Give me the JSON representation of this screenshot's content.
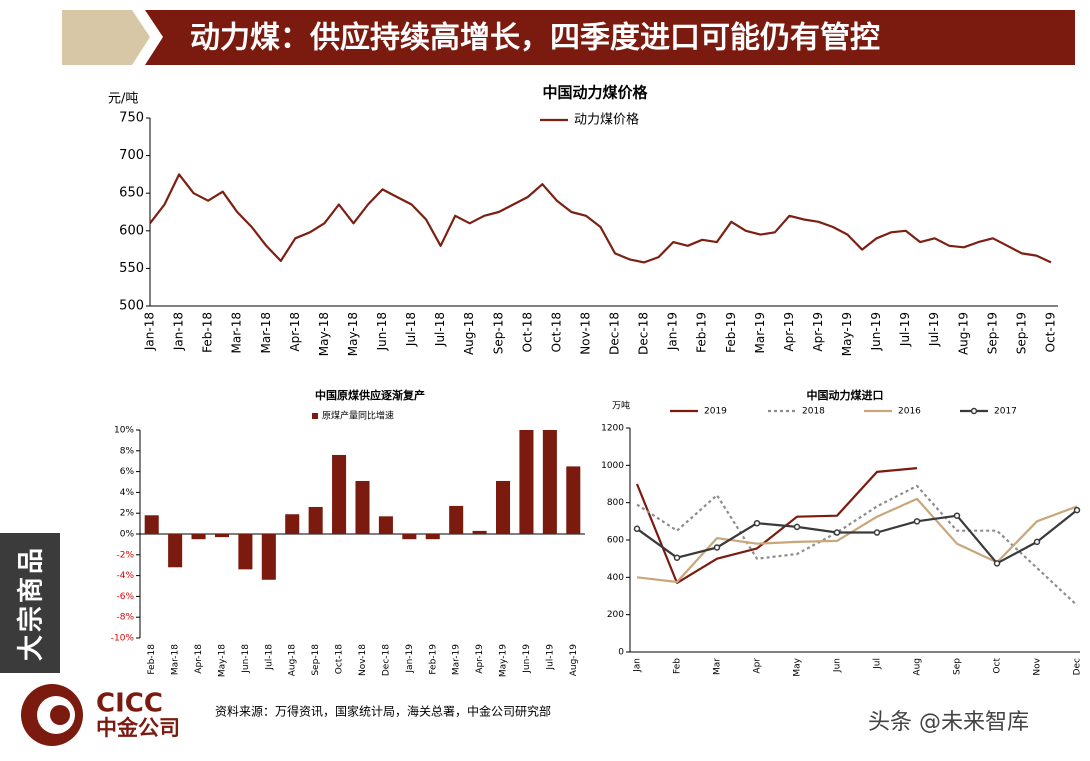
{
  "header": {
    "title": "动力煤：供应持续高增长，四季度进口可能仍有管控"
  },
  "side_label": "大宗商品",
  "logo": {
    "en": "CICC",
    "cn": "中金公司"
  },
  "source": "资料来源：万得资讯，国家统计局，海关总署，中金公司研究部",
  "watermark": "头条 @未来智库",
  "chart_data": [
    {
      "type": "line",
      "title": "中国动力煤价格",
      "y_label": "元/吨",
      "categories": [
        "Jan-18",
        null,
        "Jan-18",
        null,
        "Feb-18",
        null,
        "Mar-18",
        null,
        "Mar-18",
        null,
        "Apr-18",
        null,
        "May-18",
        null,
        "May-18",
        null,
        "Jun-18",
        null,
        "Jul-18",
        null,
        "Jul-18",
        null,
        "Aug-18",
        null,
        "Sep-18",
        null,
        "Oct-18",
        null,
        "Oct-18",
        null,
        "Nov-18",
        null,
        "Dec-18",
        null,
        "Dec-18",
        null,
        "Jan-19",
        null,
        "Feb-19",
        null,
        "Feb-19",
        null,
        "Mar-19",
        null,
        "Apr-19",
        null,
        "Apr-19",
        null,
        "May-19",
        null,
        "Jun-19",
        null,
        "Jul-19",
        null,
        "Jul-19",
        null,
        "Aug-19",
        null,
        "Sep-19",
        null,
        "Sep-19",
        null,
        "Oct-19"
      ],
      "series": [
        {
          "name": "动力煤价格",
          "color": "#7b2012",
          "values": [
            610,
            635,
            675,
            650,
            640,
            652,
            625,
            605,
            580,
            560,
            590,
            598,
            610,
            635,
            610,
            635,
            655,
            645,
            635,
            615,
            580,
            620,
            610,
            620,
            625,
            635,
            645,
            662,
            640,
            625,
            620,
            605,
            570,
            562,
            558,
            565,
            585,
            580,
            588,
            585,
            612,
            600,
            595,
            598,
            620,
            615,
            612,
            605,
            595,
            575,
            590,
            598,
            600,
            585,
            590,
            580,
            578,
            585,
            590,
            580,
            570,
            567,
            558
          ]
        }
      ],
      "ylim": [
        500,
        750
      ],
      "yticks": [
        500,
        550,
        600,
        650,
        700,
        750
      ]
    },
    {
      "type": "bar",
      "title": "中国原煤供应逐渐复产",
      "categories": [
        "Feb-18",
        "Mar-18",
        "Apr-18",
        "May-18",
        "Jun-18",
        "Jul-18",
        "Aug-18",
        "Sep-18",
        "Oct-18",
        "Nov-18",
        "Dec-18",
        "Jan-19",
        "Feb-19",
        "Mar-19",
        "Apr-19",
        "May-19",
        "Jun-19",
        "Jul-19",
        "Aug-19"
      ],
      "series": [
        {
          "name": "原煤产量同比增速",
          "color": "#7b1a0f",
          "values": [
            1.8,
            -3.2,
            -0.5,
            -0.3,
            -3.4,
            -4.4,
            1.9,
            2.6,
            7.6,
            5.1,
            1.7,
            -0.5,
            -0.5,
            2.7,
            0.3,
            5.1,
            10.0,
            10.0,
            6.5
          ]
        }
      ],
      "ylim": [
        -10,
        10
      ],
      "yticks": [
        {
          "value": -10,
          "label": "-10%"
        },
        {
          "value": -8,
          "label": "-8%"
        },
        {
          "value": -6,
          "label": "-6%"
        },
        {
          "value": -4,
          "label": "-4%"
        },
        {
          "value": -2,
          "label": "-2%"
        },
        {
          "value": 0,
          "label": "0%"
        },
        {
          "value": 2,
          "label": "2%"
        },
        {
          "value": 4,
          "label": "4%"
        },
        {
          "value": 6,
          "label": "6%"
        },
        {
          "value": 8,
          "label": "8%"
        },
        {
          "value": 10,
          "label": "10%"
        }
      ]
    },
    {
      "type": "line",
      "title": "中国动力煤进口",
      "y_label": "万吨",
      "categories": [
        "Jan",
        "Feb",
        "Mar",
        "Apr",
        "May",
        "Jun",
        "Jul",
        "Aug",
        "Sep",
        "Oct",
        "Nov",
        "Dec"
      ],
      "series": [
        {
          "name": "2019",
          "color": "#7b1a0f",
          "values": [
            900,
            370,
            500,
            555,
            725,
            730,
            965,
            985,
            null,
            null,
            null,
            null
          ]
        },
        {
          "name": "2018",
          "color": "#8c8c8c",
          "dash": true,
          "values": [
            790,
            650,
            840,
            500,
            525,
            640,
            780,
            890,
            650,
            650,
            450,
            250
          ]
        },
        {
          "name": "2016",
          "color": "#c9a77b",
          "values": [
            400,
            375,
            610,
            580,
            590,
            595,
            725,
            820,
            580,
            480,
            700,
            780
          ]
        },
        {
          "name": "2017",
          "color": "#3a3a3a",
          "marker": "circle",
          "values": [
            660,
            505,
            560,
            690,
            670,
            640,
            640,
            700,
            730,
            475,
            590,
            760
          ]
        }
      ],
      "ylim": [
        0,
        1200
      ],
      "yticks": [
        0,
        200,
        400,
        600,
        800,
        1000,
        1200
      ]
    }
  ]
}
